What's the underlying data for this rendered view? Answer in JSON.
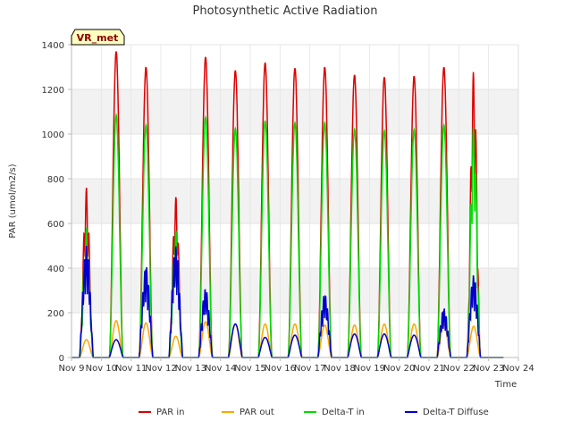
{
  "chart_data": {
    "type": "line",
    "title": "Photosynthetic Active Radiation",
    "xlabel": "Time",
    "ylabel": "PAR (umol/m2/s)",
    "ylim": [
      0,
      1400
    ],
    "yticks": [
      0,
      200,
      400,
      600,
      800,
      1000,
      1200,
      1400
    ],
    "xlim": [
      9,
      24
    ],
    "xticks": [
      {
        "day": 9,
        "label": "Nov 9"
      },
      {
        "day": 10,
        "label": "Nov 10"
      },
      {
        "day": 11,
        "label": "Nov 11"
      },
      {
        "day": 12,
        "label": "Nov 12"
      },
      {
        "day": 13,
        "label": "Nov 13"
      },
      {
        "day": 14,
        "label": "Nov 14"
      },
      {
        "day": 15,
        "label": "Nov 15"
      },
      {
        "day": 16,
        "label": "Nov 16"
      },
      {
        "day": 17,
        "label": "Nov 17"
      },
      {
        "day": 18,
        "label": "Nov 18"
      },
      {
        "day": 19,
        "label": "Nov 19"
      },
      {
        "day": 20,
        "label": "Nov 20"
      },
      {
        "day": 21,
        "label": "Nov 21"
      },
      {
        "day": 22,
        "label": "Nov 22"
      },
      {
        "day": 23,
        "label": "Nov 23"
      },
      {
        "day": 24,
        "label": "Nov 24"
      }
    ],
    "grid": true,
    "legend_position": "bottom",
    "badge": "VR_met",
    "daily_peaks": {
      "days": [
        9,
        10,
        11,
        12,
        13,
        14,
        15,
        16,
        17,
        18,
        19,
        20,
        21,
        22,
        23
      ],
      "note": "approximate midday peak value for each day (data units)"
    },
    "series": [
      {
        "name": "PAR in",
        "color": "#dd0000",
        "peaks": [
          760,
          1370,
          1300,
          720,
          1345,
          1285,
          1320,
          1295,
          1300,
          1265,
          1255,
          1260,
          1300,
          1285,
          0
        ]
      },
      {
        "name": "PAR out",
        "color": "#ffa500",
        "peaks": [
          80,
          165,
          155,
          95,
          160,
          150,
          150,
          150,
          145,
          145,
          150,
          150,
          150,
          140,
          0
        ]
      },
      {
        "name": "Delta-T in",
        "color": "#00dd00",
        "peaks": [
          580,
          1085,
          1040,
          570,
          1075,
          1025,
          1060,
          1050,
          1050,
          1020,
          1015,
          1020,
          1040,
          1035,
          0
        ]
      },
      {
        "name": "Delta-T Diffuse",
        "color": "#0000cc",
        "peaks": [
          500,
          80,
          410,
          500,
          310,
          150,
          90,
          100,
          285,
          105,
          105,
          100,
          220,
          370,
          0
        ]
      }
    ]
  }
}
